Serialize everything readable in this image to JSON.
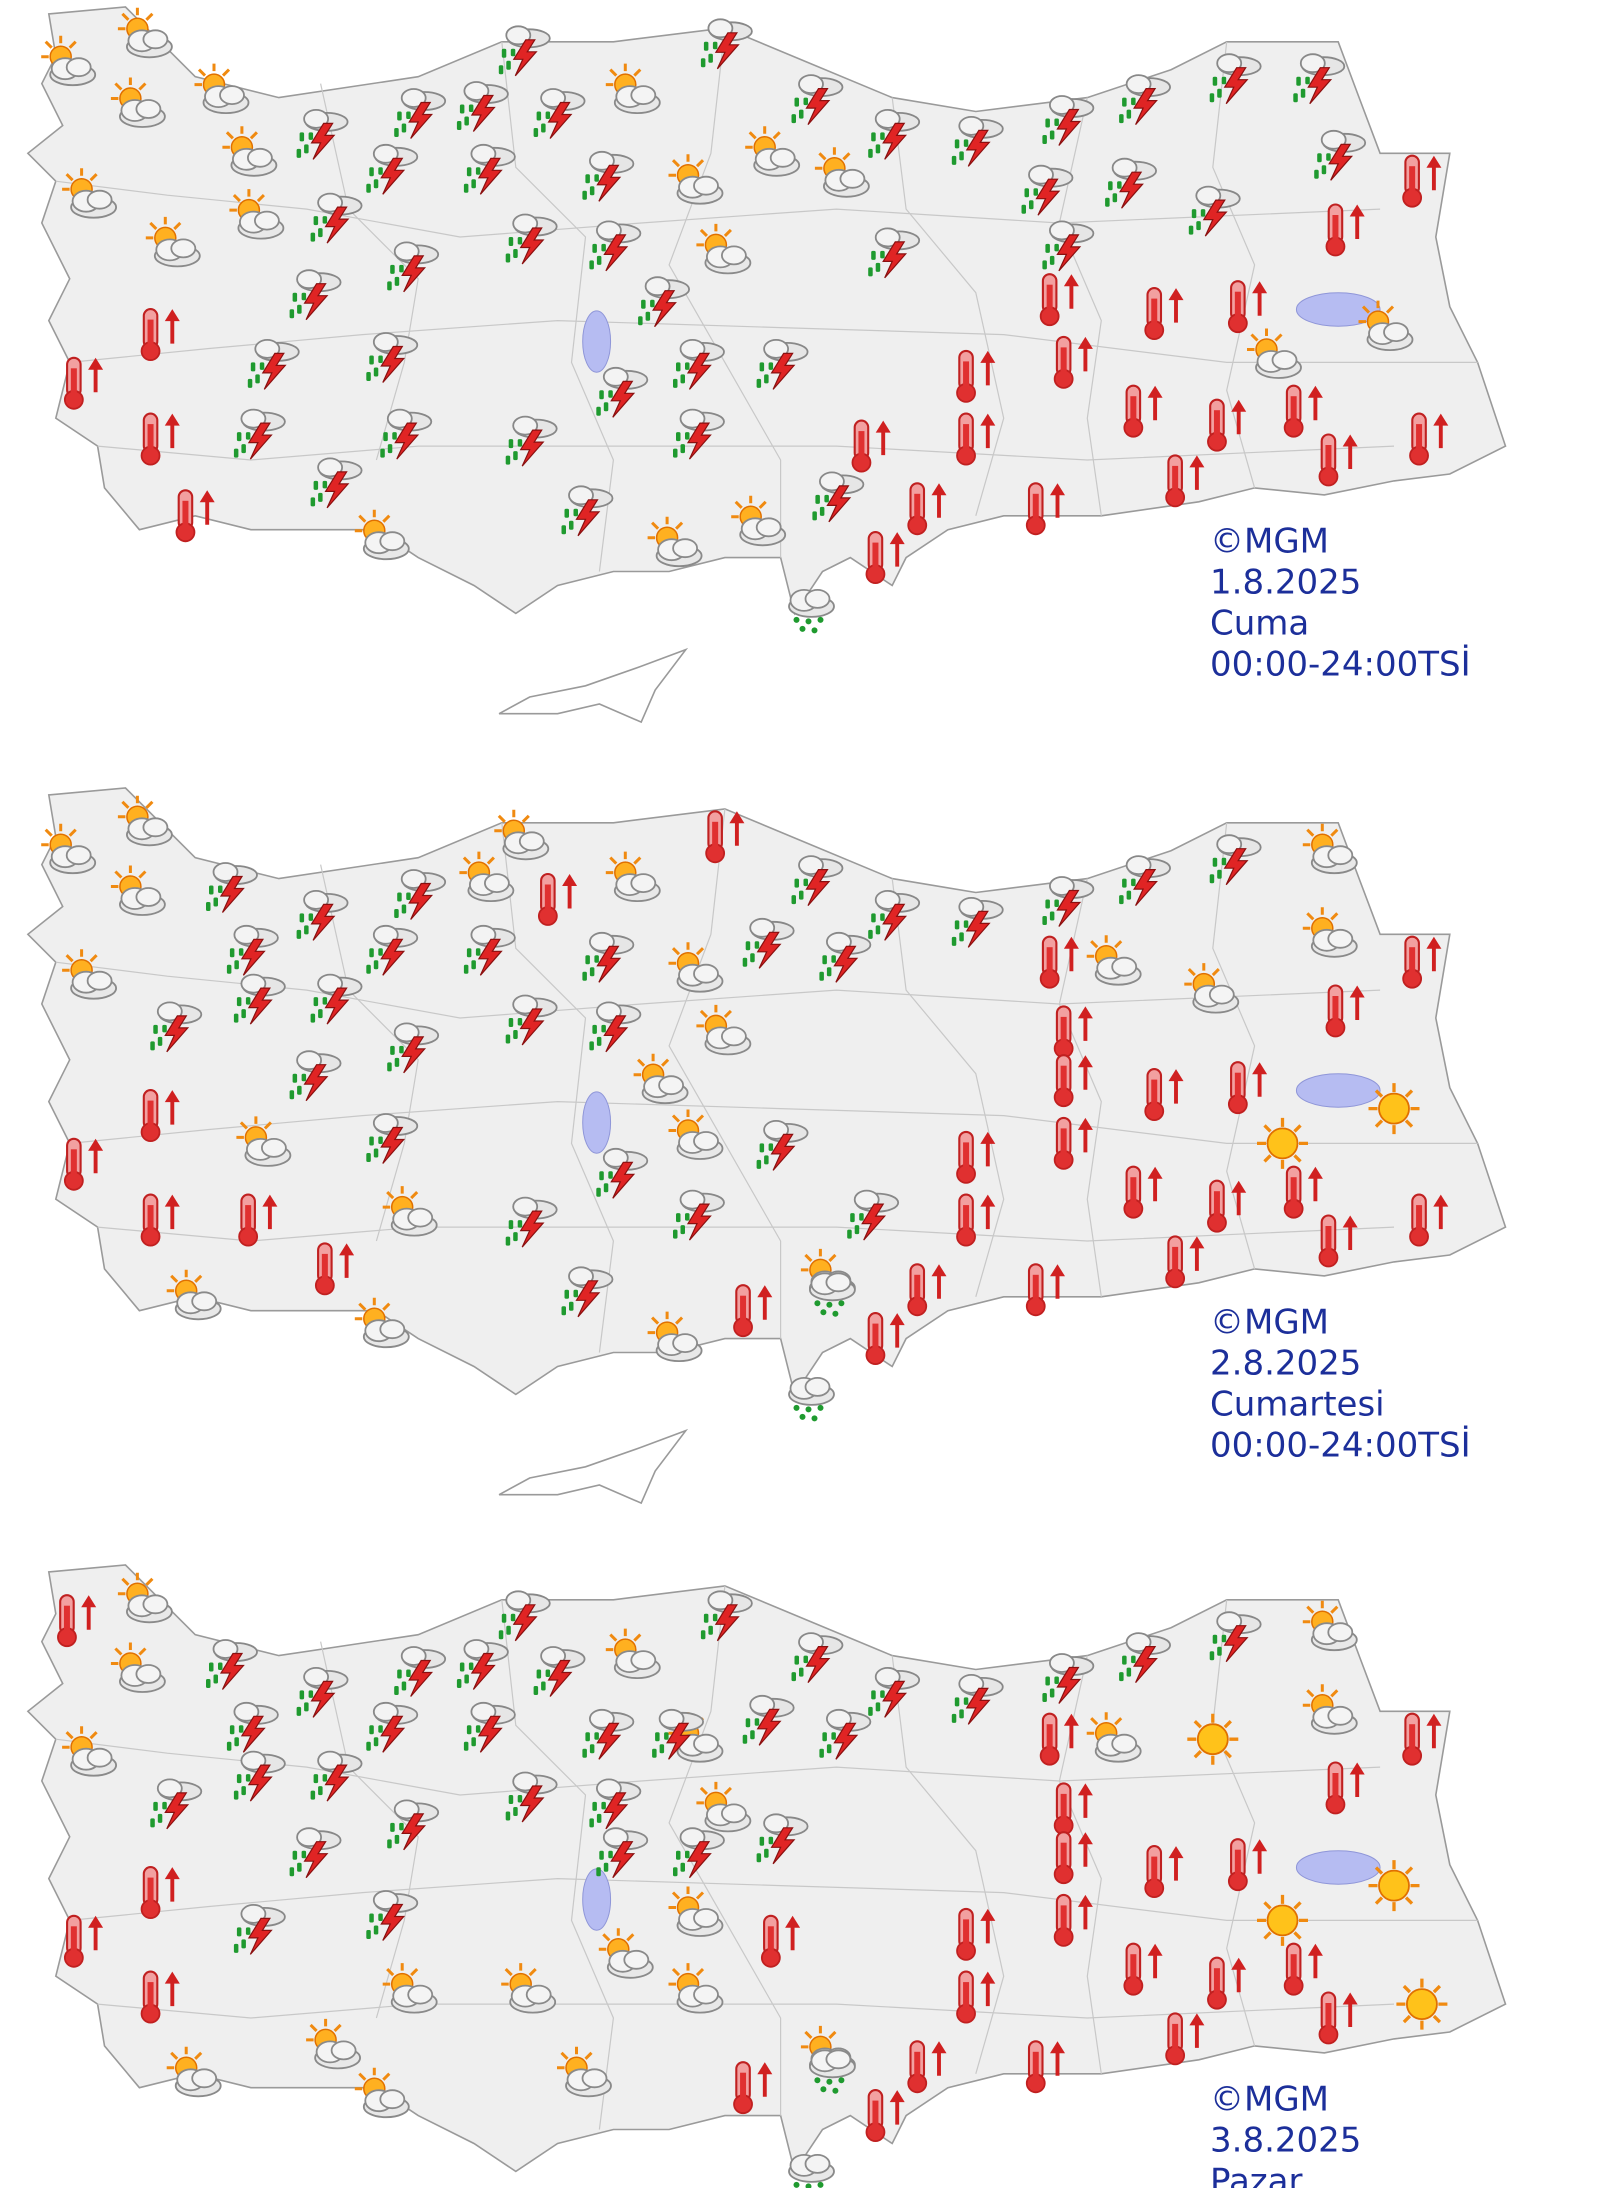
{
  "panels": [
    {
      "copyright": "©MGM",
      "date": "1.8.2025",
      "day": "Cuma",
      "period": "00:00-24:00TSİ"
    },
    {
      "copyright": "©MGM",
      "date": "2.8.2025",
      "day": "Cumartesi",
      "period": "00:00-24:00TSİ"
    },
    {
      "copyright": "©MGM",
      "date": "3.8.2025",
      "day": "Pazar"
    }
  ]
}
